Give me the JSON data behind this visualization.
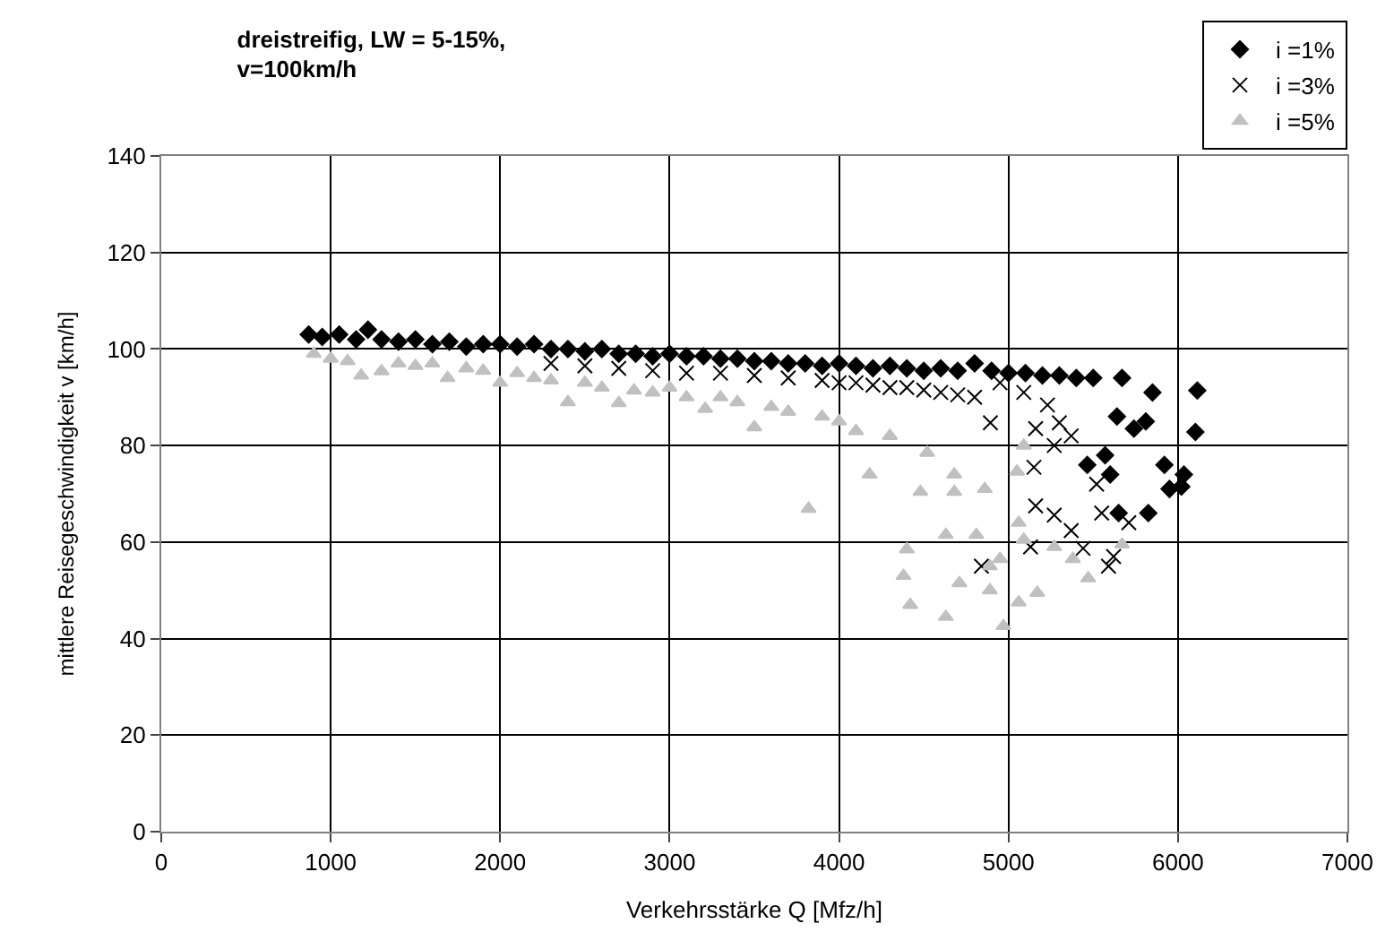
{
  "chart_data": {
    "type": "scatter",
    "title": "dreistreifig, LW = 5-15%,\nv=100km/h",
    "xlabel": "Verkehrsstärke Q [Mfz/h]",
    "ylabel": "mittlere Reisegeschwindigkeit v [km/h]",
    "xlim": [
      0,
      7000
    ],
    "xticks": [
      0,
      1000,
      2000,
      3000,
      4000,
      5000,
      6000,
      7000
    ],
    "ylim": [
      0,
      140
    ],
    "yticks": [
      0,
      20,
      40,
      60,
      80,
      100,
      120,
      140
    ],
    "grid": true,
    "legend": "top right",
    "series": [
      {
        "name": "i =1%",
        "color": "#000000",
        "marker": "diamond",
        "x": [
          870,
          950,
          1050,
          1150,
          1220,
          1300,
          1400,
          1500,
          1600,
          1700,
          1800,
          1900,
          2000,
          2100,
          2200,
          2300,
          2400,
          2500,
          2600,
          2700,
          2800,
          2900,
          3000,
          3100,
          3200,
          3300,
          3400,
          3500,
          3600,
          3700,
          3800,
          3900,
          4000,
          4100,
          4200,
          4300,
          4400,
          4500,
          4600,
          4700,
          4800,
          4900,
          5000,
          5100,
          5200,
          5300,
          5400,
          5465,
          5500,
          5570,
          5600,
          5640,
          5650,
          5670,
          5740,
          5810,
          5825,
          5850,
          5920,
          5950,
          6020,
          6035,
          6103,
          6114
        ],
        "values": [
          103,
          102.5,
          103,
          102,
          104,
          102,
          101.5,
          102,
          101,
          101.5,
          100.5,
          101,
          101,
          100.5,
          101,
          100,
          100,
          99.5,
          100,
          99,
          99,
          98.5,
          99,
          98.5,
          98.5,
          98,
          98,
          97.5,
          97.5,
          97,
          97,
          96.5,
          97,
          96.5,
          96,
          96.5,
          96,
          95.5,
          96,
          95.5,
          97,
          95.5,
          95,
          95,
          94.5,
          94.5,
          94,
          76,
          94,
          78,
          74,
          86,
          66,
          94,
          83.5,
          85,
          66,
          91,
          76,
          71,
          71.5,
          74,
          82.8,
          91.4
        ]
      },
      {
        "name": "i =3%",
        "color": "#000000",
        "marker": "cross",
        "x": [
          2300,
          2500,
          2700,
          2900,
          3100,
          3300,
          3500,
          3700,
          3900,
          4000,
          4100,
          4200,
          4300,
          4400,
          4500,
          4600,
          4700,
          4800,
          4840,
          4893,
          4950,
          5090,
          5130,
          5150,
          5160,
          5160,
          5230,
          5270,
          5270,
          5300,
          5370,
          5370,
          5440,
          5520,
          5550,
          5590,
          5620,
          5710
        ],
        "values": [
          97,
          96.5,
          96,
          95.5,
          95,
          95,
          94.5,
          94,
          93.5,
          93,
          93,
          92.5,
          92,
          92,
          91.5,
          91,
          90.5,
          90,
          55,
          84.7,
          93,
          91,
          59,
          75.5,
          83.5,
          67.5,
          88.4,
          80,
          65.6,
          84.7,
          82,
          62.4,
          58.7,
          72,
          66,
          55,
          57,
          64
        ]
      },
      {
        "name": "i =5%",
        "color": "#c0c0c0",
        "marker": "triangle",
        "x": [
          900,
          1000,
          1100,
          1180,
          1300,
          1400,
          1500,
          1600,
          1690,
          1800,
          1900,
          2000,
          2100,
          2200,
          2300,
          2400,
          2500,
          2600,
          2700,
          2790,
          2900,
          3000,
          3100,
          3210,
          3300,
          3400,
          3500,
          3600,
          3700,
          3820,
          3900,
          4000,
          4100,
          4180,
          4300,
          4380,
          4400,
          4420,
          4480,
          4520,
          4630,
          4630,
          4680,
          4680,
          4710,
          4810,
          4860,
          4890,
          4890,
          4950,
          4970,
          5050,
          5060,
          5060,
          5090,
          5090,
          5170,
          5270,
          5380,
          5470,
          5670
        ],
        "values": [
          99,
          98,
          97.5,
          94.5,
          95.4,
          97,
          96.5,
          97,
          94,
          96,
          95.5,
          93,
          95,
          94,
          93.5,
          89,
          93,
          92,
          88.8,
          91.4,
          91,
          92,
          90,
          87.6,
          90,
          89,
          83.8,
          88,
          87,
          66.9,
          86,
          85,
          83,
          74,
          82,
          53,
          58.5,
          47,
          70.4,
          78.5,
          44.5,
          61.5,
          70.4,
          74,
          51.5,
          61.5,
          71,
          50,
          55,
          56.5,
          42.6,
          74.6,
          47.5,
          64,
          60.5,
          80,
          49.5,
          59,
          56.5,
          52.5,
          59.5
        ]
      }
    ]
  }
}
